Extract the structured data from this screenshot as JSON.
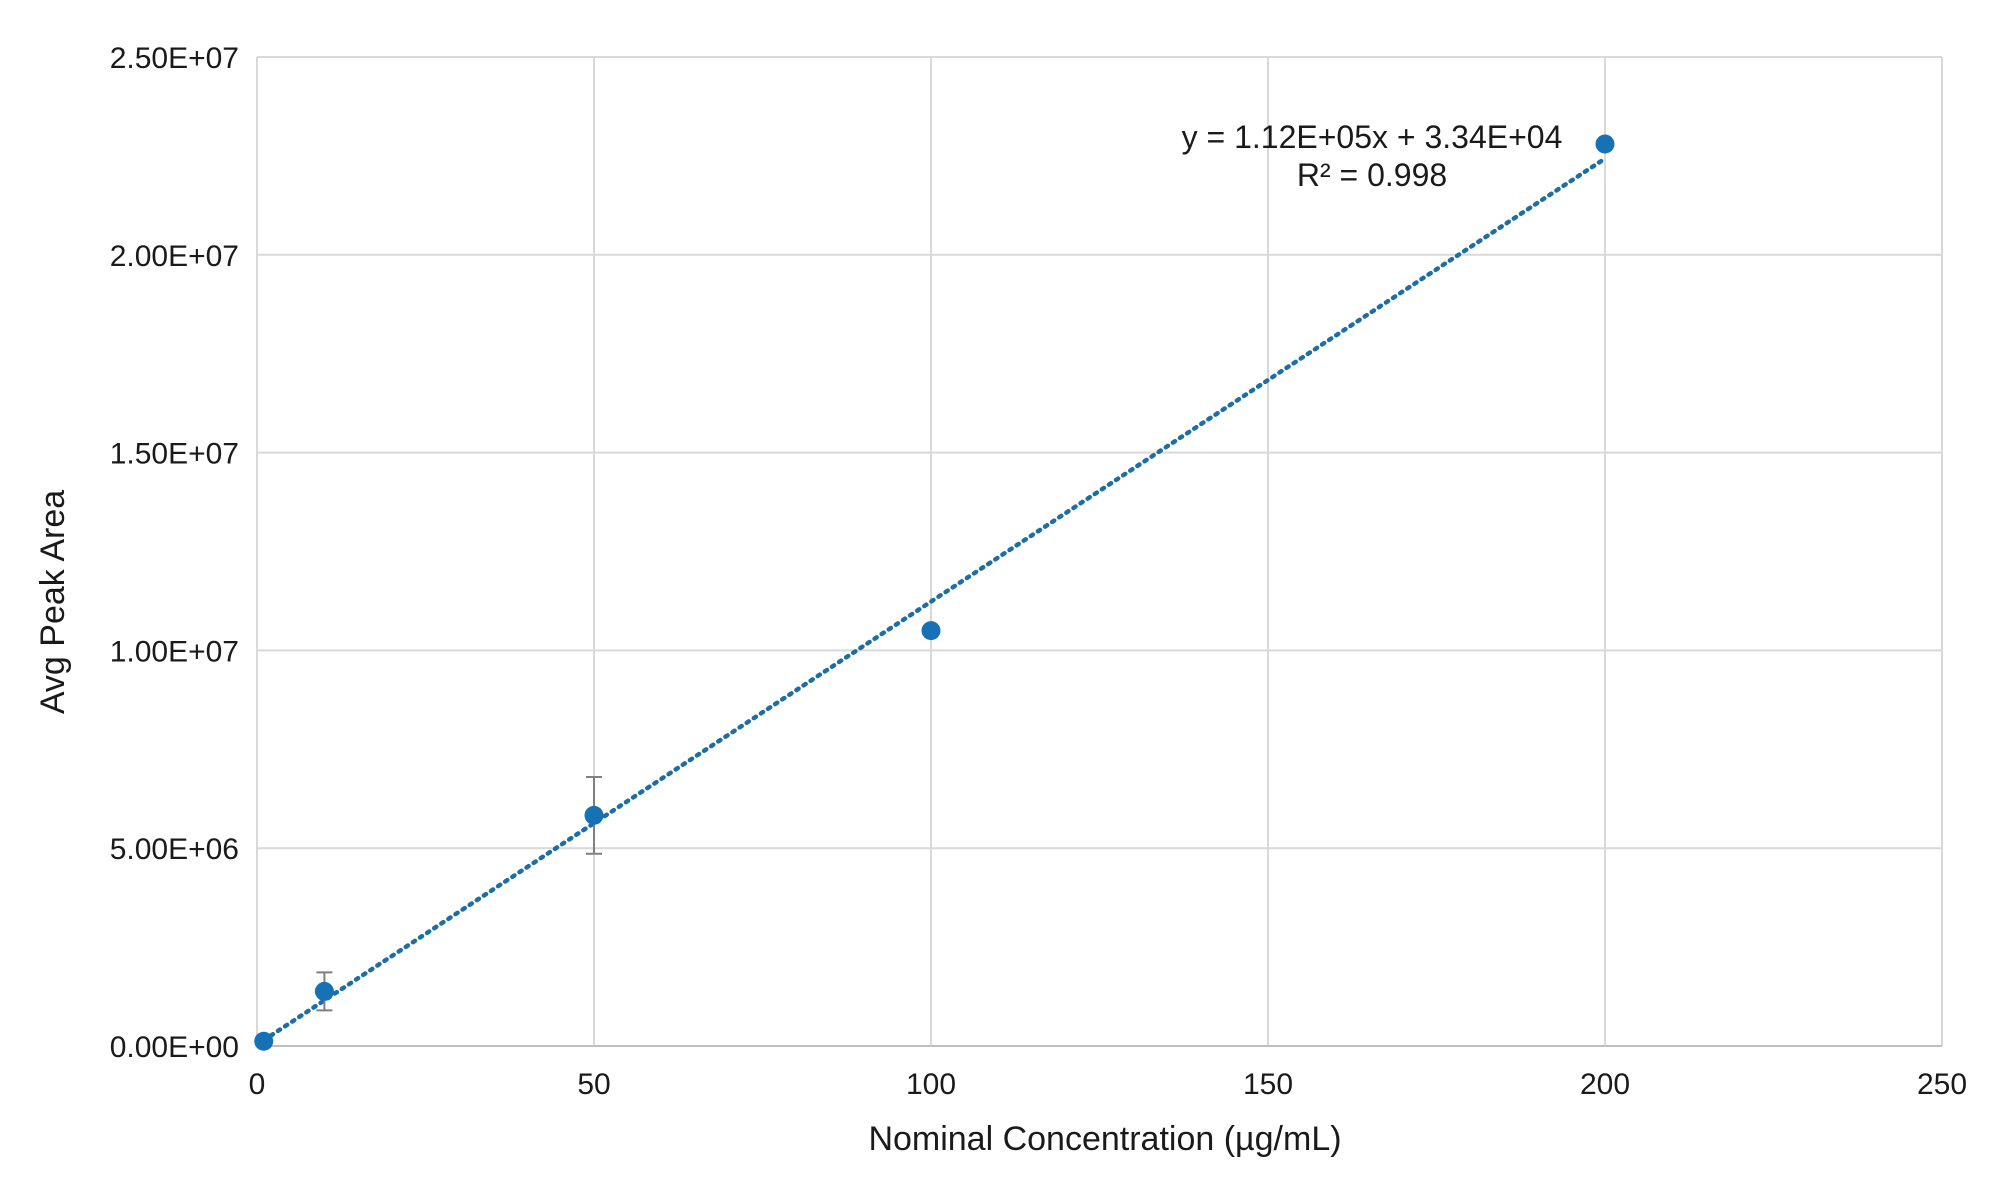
{
  "chart_data": {
    "type": "scatter",
    "title": "",
    "xlabel": "Nominal Concentration (µg/mL)",
    "ylabel": "Avg Peak Area",
    "xlim": [
      0,
      250
    ],
    "ylim": [
      0,
      25000000
    ],
    "x_ticks": [
      0,
      50,
      100,
      150,
      200,
      250
    ],
    "x_tick_labels": [
      "0",
      "50",
      "100",
      "150",
      "200",
      "250"
    ],
    "y_ticks": [
      0,
      5000000,
      10000000,
      15000000,
      20000000,
      25000000
    ],
    "y_tick_labels": [
      "0.00E+00",
      "5.00E+06",
      "1.00E+07",
      "1.50E+07",
      "2.00E+07",
      "2.50E+07"
    ],
    "grid": true,
    "legend": "none",
    "marker_color": "#1672B5",
    "trendline_color": "#1C6EA4",
    "error_bar_color": "#7F7F7F",
    "series": [
      {
        "points": [
          {
            "x": 1,
            "y": 120000,
            "yerr": 0
          },
          {
            "x": 10,
            "y": 1380000,
            "yerr": 480000
          },
          {
            "x": 50,
            "y": 5830000,
            "yerr": 970000
          },
          {
            "x": 100,
            "y": 10500000,
            "yerr": 0
          },
          {
            "x": 200,
            "y": 22800000,
            "yerr": 0
          }
        ]
      }
    ],
    "trendline": {
      "type": "linear",
      "slope": 112000,
      "intercept": 33400,
      "x_range": [
        1,
        200
      ],
      "style": "dotted"
    },
    "annotations": {
      "equation": "y = 1.12E+05x + 3.34E+04",
      "r_squared": "R² = 0.998"
    }
  }
}
